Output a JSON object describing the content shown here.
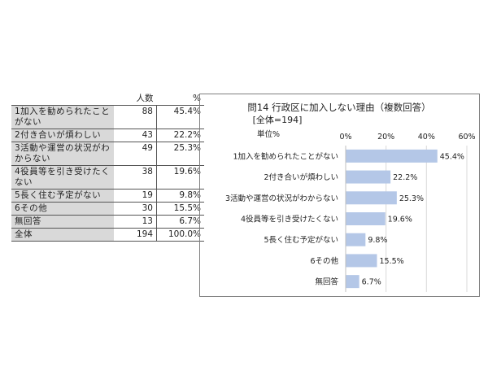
{
  "table": {
    "headers": [
      "",
      "人数",
      "%"
    ],
    "rows": [
      {
        "label": "1加入を勧められたことがない",
        "count": "88",
        "pct": "45.4%"
      },
      {
        "label": "2付き合いが煩わしい",
        "count": "43",
        "pct": "22.2%"
      },
      {
        "label": "3活動や運営の状況がわからない",
        "count": "49",
        "pct": "25.3%"
      },
      {
        "label": "4役員等を引き受けたくない",
        "count": "38",
        "pct": "19.6%"
      },
      {
        "label": "5長く住む予定がない",
        "count": "19",
        "pct": "9.8%"
      },
      {
        "label": "6その他",
        "count": "30",
        "pct": "15.5%"
      },
      {
        "label": "無回答",
        "count": "13",
        "pct": "6.7%"
      },
      {
        "label": "全体",
        "count": "194",
        "pct": "100.0%"
      }
    ]
  },
  "chart_data": {
    "type": "bar",
    "orientation": "horizontal",
    "title": "問14 行政区に加入しない理由（複数回答）",
    "subtitle": "[全体=194]",
    "unit_label": "単位%",
    "categories": [
      "1加入を勧められたことがない",
      "2付き合いが煩わしい",
      "3活動や運営の状況がわからない",
      "4役員等を引き受けたくない",
      "5長く住む予定がない",
      "6その他",
      "無回答"
    ],
    "values": [
      45.4,
      22.2,
      25.3,
      19.6,
      9.8,
      15.5,
      6.7
    ],
    "value_labels": [
      "45.4%",
      "22.2%",
      "25.3%",
      "19.6%",
      "9.8%",
      "15.5%",
      "6.7%"
    ],
    "xlim": [
      0,
      60
    ],
    "ticks": [
      0,
      20,
      40,
      60
    ],
    "tick_labels": [
      "0%",
      "20%",
      "40%",
      "60%"
    ],
    "grid": true,
    "bar_color": "#b4c7e7",
    "grid_color": "#d9d9d9"
  }
}
